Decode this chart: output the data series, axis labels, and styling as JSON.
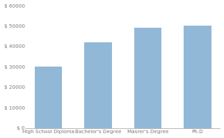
{
  "categories": [
    "High School Diploma",
    "Bachelor's Degree",
    "Masrer's Degree",
    "Ph.D"
  ],
  "values": [
    30000,
    42000,
    49000,
    50000
  ],
  "bar_color": "#92b8d8",
  "bar_edge_color": "#92b8d8",
  "ylim": [
    0,
    60000
  ],
  "yticks": [
    0,
    10000,
    20000,
    30000,
    40000,
    50000,
    60000
  ],
  "background_color": "#ffffff",
  "bar_width": 0.55,
  "figsize": [
    3.22,
    1.99
  ],
  "dpi": 100
}
